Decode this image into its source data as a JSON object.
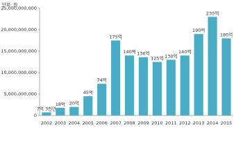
{
  "chart_data": {
    "type": "bar",
    "unit_label": "단위: 원",
    "categories": [
      "2002",
      "2003",
      "2004",
      "2005",
      "2006",
      "2007",
      "2008",
      "2009",
      "2010",
      "2011",
      "2012",
      "2013",
      "2014",
      "2015"
    ],
    "values": [
      730000000,
      1800000000,
      2000000000,
      4500000000,
      7400000000,
      17500000000,
      14000000000,
      13600000000,
      12500000000,
      13000000000,
      14000000000,
      19000000000,
      23000000000,
      18000000000
    ],
    "value_labels": [
      "7억 3천만",
      "18억",
      "20억",
      "45억",
      "74억",
      "175억",
      "140억",
      "136억",
      "125억",
      "130억",
      "140억",
      "190억",
      "230억",
      "180억"
    ],
    "color": "#4bacc6",
    "ylim": [
      0,
      25000000000
    ],
    "yticks": [
      {
        "value": 0,
        "label": "0"
      },
      {
        "value": 5000000000,
        "label": "5,000,000,000"
      },
      {
        "value": 10000000000,
        "label": "10,000,000,000"
      },
      {
        "value": 15000000000,
        "label": "15,000,000,000"
      },
      {
        "value": 20000000000,
        "label": "20,000,000,000"
      },
      {
        "value": 25000000000,
        "label": "25,000,000,000"
      }
    ],
    "grid": false
  }
}
